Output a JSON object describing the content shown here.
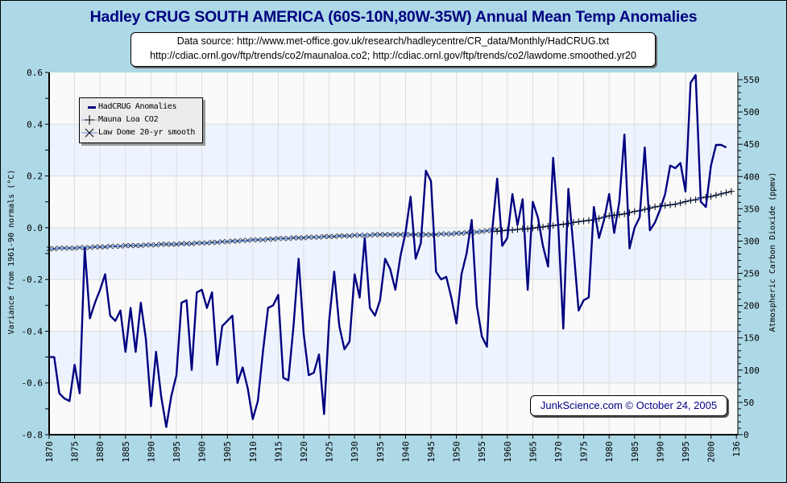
{
  "chart_data": {
    "type": "line",
    "title": "Hadley CRUG SOUTH AMERICA (60S-10N,80W-35W) Annual Mean Temp Anomalies",
    "subtitle_lines": [
      "Data source: http://www.met-office.gov.uk/research/hadleycentre/CR_data/Monthly/HadCRUG.txt",
      "http://cdiac.ornl.gov/ftp/trends/co2/maunaloa.co2; http://cdiac.ornl.gov/ftp/trends/co2/lawdome.smoothed.yr20"
    ],
    "xlabel": "",
    "ylabel": "Variance from 1961-90 normals (°C)",
    "y2label": "Atmospheric Carbon Dioxide (ppmv)",
    "xlim": [
      1870,
      2005
    ],
    "ylim": [
      -0.8,
      0.6
    ],
    "y2lim": [
      0,
      560
    ],
    "x_ticks": [
      "1870",
      "1875",
      "1880",
      "1885",
      "1890",
      "1895",
      "1900",
      "1905",
      "1910",
      "1915",
      "1920",
      "1925",
      "1930",
      "1935",
      "1940",
      "1945",
      "1950",
      "1955",
      "1960",
      "1965",
      "1970",
      "1975",
      "1980",
      "1985",
      "1990",
      "1995",
      "2000",
      "136"
    ],
    "y_ticks": [
      "0.6",
      "0.4",
      "0.2",
      "0.0",
      "-0.2",
      "-0.4",
      "-0.6",
      "-0.8"
    ],
    "y2_ticks": [
      "550",
      "500",
      "450",
      "400",
      "350",
      "300",
      "250",
      "200",
      "150",
      "100",
      "50",
      "0"
    ],
    "grid": true,
    "legend_position": "top-left",
    "legend": [
      "HadCRUG Anomalies",
      "Mauna Loa CO2",
      "Law Dome 20-yr smooth"
    ],
    "footer": "JunkScience.com © October 24, 2005",
    "colors": {
      "background": "#add8e6",
      "anomaly_line": "#000080",
      "co2_line": "#6495ed",
      "band": "#eef4ff",
      "plot_bg": "#fafafa"
    },
    "series": [
      {
        "name": "HadCRUG Anomalies",
        "axis": "left",
        "start_year": 1870,
        "values": [
          -0.5,
          -0.5,
          -0.64,
          -0.66,
          -0.67,
          -0.53,
          -0.64,
          -0.08,
          -0.35,
          -0.29,
          -0.24,
          -0.18,
          -0.34,
          -0.36,
          -0.32,
          -0.48,
          -0.31,
          -0.48,
          -0.29,
          -0.43,
          -0.69,
          -0.48,
          -0.65,
          -0.77,
          -0.65,
          -0.57,
          -0.29,
          -0.28,
          -0.55,
          -0.25,
          -0.24,
          -0.31,
          -0.25,
          -0.53,
          -0.38,
          -0.36,
          -0.34,
          -0.6,
          -0.54,
          -0.62,
          -0.74,
          -0.67,
          -0.48,
          -0.31,
          -0.3,
          -0.26,
          -0.58,
          -0.59,
          -0.38,
          -0.12,
          -0.41,
          -0.57,
          -0.56,
          -0.49,
          -0.72,
          -0.36,
          -0.17,
          -0.38,
          -0.47,
          -0.44,
          -0.18,
          -0.27,
          -0.04,
          -0.31,
          -0.34,
          -0.28,
          -0.12,
          -0.16,
          -0.24,
          -0.11,
          -0.02,
          0.12,
          -0.12,
          -0.06,
          0.22,
          0.18,
          -0.17,
          -0.2,
          -0.19,
          -0.27,
          -0.37,
          -0.18,
          -0.1,
          0.03,
          -0.3,
          -0.42,
          -0.46,
          -0.02,
          0.19,
          -0.07,
          -0.04,
          0.13,
          0.01,
          0.11,
          -0.24,
          0.1,
          0.04,
          -0.07,
          -0.15,
          0.27,
          0.01,
          -0.39,
          0.15,
          -0.08,
          -0.32,
          -0.28,
          -0.27,
          0.08,
          -0.04,
          0.03,
          0.13,
          -0.02,
          0.1,
          0.36,
          -0.08,
          0.0,
          0.04,
          0.31,
          -0.01,
          0.02,
          0.07,
          0.13,
          0.24,
          0.23,
          0.25,
          0.14,
          0.56,
          0.59,
          0.1,
          0.08,
          0.24,
          0.32,
          0.32,
          0.31
        ]
      },
      {
        "name": "Law Dome 20-yr smooth",
        "axis": "right",
        "start_year": 1870,
        "values": [
          288,
          288,
          289,
          289,
          289,
          289,
          290,
          290,
          290,
          291,
          291,
          291,
          292,
          292,
          292,
          293,
          293,
          293,
          293,
          294,
          294,
          294,
          295,
          295,
          295,
          295,
          296,
          296,
          296,
          297,
          297,
          297,
          298,
          298,
          299,
          299,
          300,
          300,
          301,
          301,
          302,
          302,
          302,
          303,
          303,
          304,
          304,
          304,
          305,
          305,
          305,
          306,
          306,
          306,
          307,
          307,
          307,
          308,
          308,
          308,
          309,
          309,
          309,
          309,
          310,
          310,
          310,
          310,
          310,
          310,
          310,
          310,
          310,
          310,
          310,
          310,
          310,
          311,
          311,
          311,
          312,
          312,
          313,
          313,
          314,
          315,
          316,
          317,
          318
        ]
      },
      {
        "name": "Mauna Loa CO2",
        "axis": "right",
        "start_year": 1958,
        "values": [
          315,
          316,
          317,
          317,
          318,
          319,
          319,
          320,
          321,
          322,
          323,
          324,
          325,
          326,
          327,
          329,
          330,
          331,
          332,
          333,
          335,
          337,
          339,
          340,
          341,
          342,
          344,
          346,
          347,
          349,
          351,
          353,
          354,
          355,
          356,
          357,
          359,
          361,
          363,
          364,
          367,
          368,
          369,
          371,
          373,
          375,
          377
        ]
      }
    ]
  }
}
